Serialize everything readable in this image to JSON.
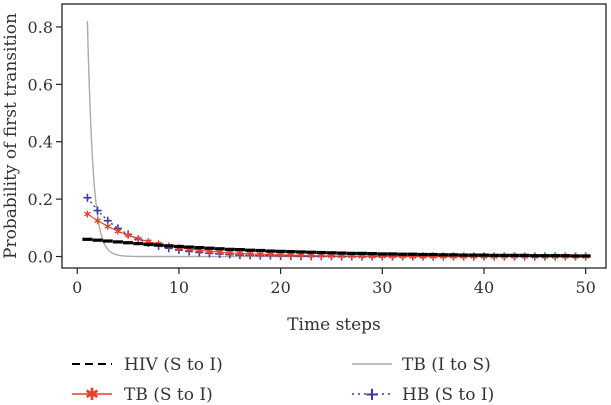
{
  "chart_data": {
    "type": "line",
    "title": "",
    "xlabel": "Time steps",
    "ylabel": "Probability of first transition",
    "xlim": [
      -1.5,
      52
    ],
    "ylim": [
      -0.04,
      0.88
    ],
    "xticks": [
      0,
      10,
      20,
      30,
      40,
      50
    ],
    "yticks": [
      0.0,
      0.2,
      0.4,
      0.6,
      0.8
    ],
    "xtick_labels": [
      "0",
      "10",
      "20",
      "30",
      "40",
      "50"
    ],
    "ytick_labels": [
      "0.0",
      "0.2",
      "0.4",
      "0.6",
      "0.8"
    ],
    "grid": false,
    "legend_position": "bottom",
    "legend": [
      {
        "name": "HIV (S to I)",
        "color": "#000000",
        "style": "dashed-bold"
      },
      {
        "name": "TB (I to S)",
        "color": "#aaaaaa",
        "style": "solid"
      },
      {
        "name": "TB (S to I)",
        "color": "#e8402a",
        "style": "asterisk"
      },
      {
        "name": "HB (S to I)",
        "color": "#3b3ba0",
        "style": "plus-dotted"
      }
    ],
    "x": [
      1,
      2,
      3,
      4,
      5,
      6,
      7,
      8,
      9,
      10,
      11,
      12,
      13,
      14,
      15,
      16,
      17,
      18,
      19,
      20,
      21,
      22,
      23,
      24,
      25,
      26,
      27,
      28,
      29,
      30,
      31,
      32,
      33,
      34,
      35,
      36,
      37,
      38,
      39,
      40,
      41,
      42,
      43,
      44,
      45,
      46,
      47,
      48,
      49,
      50
    ],
    "series": [
      {
        "name": "HIV (S to I)",
        "values": [
          0.06,
          0.057,
          0.054,
          0.051,
          0.048,
          0.045,
          0.042,
          0.04,
          0.037,
          0.035,
          0.033,
          0.031,
          0.029,
          0.027,
          0.025,
          0.024,
          0.022,
          0.021,
          0.019,
          0.018,
          0.017,
          0.016,
          0.015,
          0.014,
          0.013,
          0.012,
          0.011,
          0.011,
          0.01,
          0.009,
          0.009,
          0.008,
          0.008,
          0.007,
          0.007,
          0.006,
          0.006,
          0.005,
          0.005,
          0.005,
          0.004,
          0.004,
          0.004,
          0.004,
          0.003,
          0.003,
          0.003,
          0.003,
          0.002,
          0.002
        ]
      },
      {
        "name": "TB (I to S)",
        "values": [
          0.82,
          0.14,
          0.025,
          0.005,
          0.001,
          0,
          0,
          0,
          0,
          0,
          0,
          0,
          0,
          0,
          0,
          0,
          0,
          0,
          0,
          0,
          0,
          0,
          0,
          0,
          0,
          0,
          0,
          0,
          0,
          0,
          0,
          0,
          0,
          0,
          0,
          0,
          0,
          0,
          0,
          0,
          0,
          0,
          0,
          0,
          0,
          0,
          0,
          0,
          0,
          0
        ]
      },
      {
        "name": "TB (S to I)",
        "values": [
          0.148,
          0.125,
          0.105,
          0.088,
          0.074,
          0.062,
          0.052,
          0.044,
          0.037,
          0.031,
          0.026,
          0.022,
          0.018,
          0.015,
          0.013,
          0.011,
          0.009,
          0.008,
          0.007,
          0.006,
          0.005,
          0.004,
          0.003,
          0.003,
          0.002,
          0.002,
          0.002,
          0.001,
          0.001,
          0.001,
          0.001,
          0.001,
          0,
          0,
          0,
          0,
          0,
          0,
          0,
          0,
          0,
          0,
          0,
          0,
          0,
          0,
          0,
          0,
          0,
          0
        ]
      },
      {
        "name": "HB (S to I)",
        "values": [
          0.205,
          0.16,
          0.125,
          0.098,
          0.077,
          0.06,
          0.047,
          0.037,
          0.029,
          0.023,
          0.018,
          0.014,
          0.011,
          0.009,
          0.007,
          0.005,
          0.004,
          0.003,
          0.003,
          0.002,
          0.002,
          0.001,
          0.001,
          0.001,
          0.001,
          0,
          0,
          0,
          0,
          0,
          0,
          0,
          0,
          0,
          0,
          0,
          0,
          0,
          0,
          0,
          0,
          0,
          0,
          0,
          0,
          0,
          0,
          0,
          0,
          0
        ]
      }
    ]
  },
  "colors": {
    "hiv": "#000000",
    "tb_is": "#aaaaaa",
    "tb_si": "#e8402a",
    "hb": "#3b3ba0",
    "axis": "#222222"
  }
}
